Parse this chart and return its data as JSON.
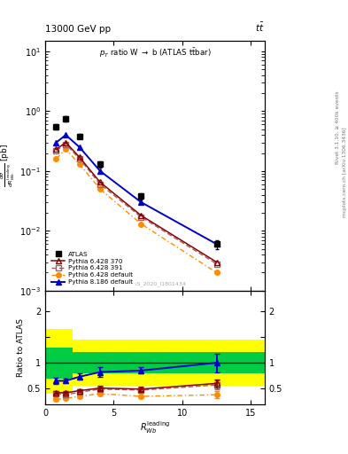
{
  "title_top": "13000 GeV pp",
  "title_top_right": "tt",
  "plot_title": "p_{T} ratio W #rightarrow b (ATLAS t#bar{t}bar)",
  "ylabel_main": "d#sigma/d(R_{Wb}^{leading}) [pb]",
  "ylabel_ratio": "Ratio to ATLAS",
  "xlabel": "R_{Wb}^{leading}",
  "watermark": "ATLAS_2020_I1801434",
  "rivet_label": "Rivet 3.1.10, #geq 400k events",
  "mcplots_label": "mcplots.cern.ch [arXiv:1306.3436]",
  "x_data": [
    0.8,
    1.5,
    2.5,
    4.0,
    7.0,
    12.5
  ],
  "x_edges": [
    0.0,
    1.0,
    2.0,
    3.0,
    5.0,
    9.5,
    16.0
  ],
  "atlas_y": [
    0.55,
    0.75,
    0.38,
    0.13,
    0.038,
    0.006
  ],
  "atlas_yerr": [
    0.05,
    0.07,
    0.03,
    0.015,
    0.005,
    0.001
  ],
  "py6_370_y": [
    0.23,
    0.3,
    0.17,
    0.065,
    0.018,
    0.003
  ],
  "py6_391_y": [
    0.22,
    0.28,
    0.16,
    0.06,
    0.017,
    0.0028
  ],
  "py6_def_y": [
    0.16,
    0.23,
    0.13,
    0.05,
    0.013,
    0.002
  ],
  "py8_def_y": [
    0.3,
    0.4,
    0.25,
    0.1,
    0.03,
    0.006
  ],
  "ratio_blue_y": [
    0.65,
    0.65,
    0.73,
    0.82,
    0.85,
    1.0
  ],
  "ratio_blue_yerr": [
    0.06,
    0.05,
    0.06,
    0.09,
    0.06,
    0.18
  ],
  "ratio_py6_370_y": [
    0.42,
    0.42,
    0.46,
    0.51,
    0.49,
    0.6
  ],
  "ratio_py6_370_yerr": [
    0.025,
    0.025,
    0.03,
    0.04,
    0.04,
    0.08
  ],
  "ratio_py6_391_y": [
    0.4,
    0.38,
    0.43,
    0.49,
    0.47,
    0.57
  ],
  "ratio_py6_391_yerr": [
    0.025,
    0.025,
    0.03,
    0.04,
    0.04,
    0.08
  ],
  "ratio_py6_def_y": [
    0.29,
    0.31,
    0.35,
    0.4,
    0.35,
    0.38
  ],
  "ratio_py6_def_yerr": [
    0.02,
    0.02,
    0.03,
    0.04,
    0.03,
    0.07
  ],
  "band_yellow_lo": [
    0.4,
    0.4,
    0.55,
    0.55,
    0.55,
    0.55
  ],
  "band_yellow_hi": [
    1.65,
    1.65,
    1.45,
    1.45,
    1.45,
    1.45
  ],
  "band_green_lo": [
    0.7,
    0.7,
    0.8,
    0.8,
    0.8,
    0.8
  ],
  "band_green_hi": [
    1.3,
    1.3,
    1.2,
    1.2,
    1.2,
    1.2
  ],
  "ylim_main": [
    0.001,
    15.0
  ],
  "ylim_ratio": [
    0.2,
    2.4
  ],
  "xlim": [
    0,
    16
  ],
  "color_atlas": "#000000",
  "color_py6_370": "#8B0000",
  "color_py6_391": "#9B6060",
  "color_py6_def": "#FF8C00",
  "color_py8_def": "#0000CD",
  "color_yellow": "#FFFF00",
  "color_green": "#00CC44"
}
